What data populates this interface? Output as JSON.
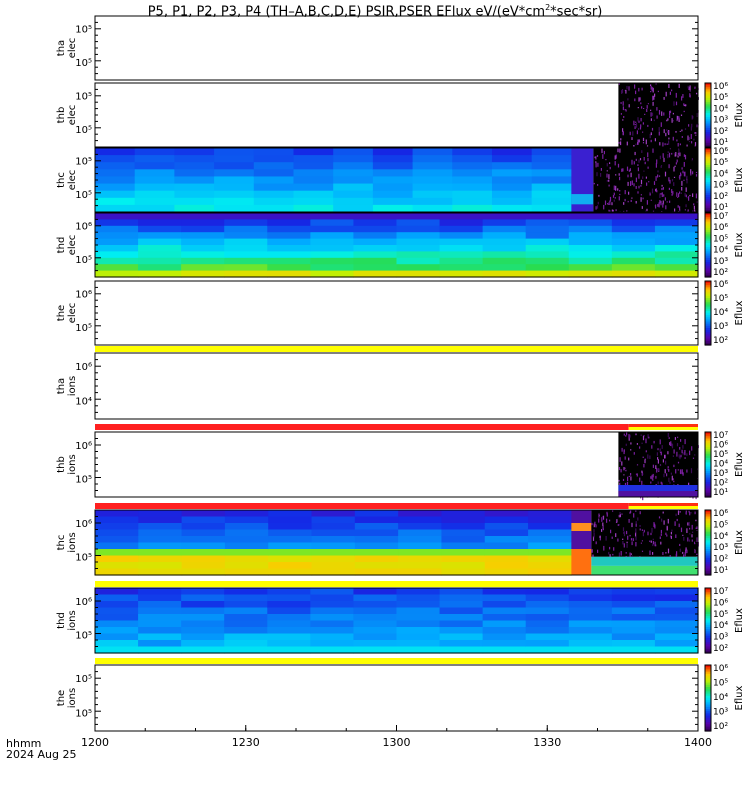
{
  "title": {
    "main": "P5, P1, P2, P3, P4 (TH–A,B,C,D,E) PSIR,PSER EFlux eV/(eV*cm",
    "sup": "2",
    "tail": "*sec*sr)"
  },
  "footer": {
    "var_label": "hhmm",
    "date_label": "2024 Aug 25"
  },
  "colors": {
    "bar_yellow": "#ffff00",
    "bar_red": "#ff2020",
    "bar_redorange": "#ff3010"
  },
  "chart_data": {
    "type": "heatmap",
    "xaxis": {
      "ticks": [
        "1200",
        "1230",
        "1300",
        "1330",
        "1400"
      ],
      "range": [
        1200,
        1400
      ]
    },
    "colorbar_label": "Eflux",
    "panels": [
      {
        "id": "tha-elec",
        "labels": [
          "tha",
          "elec"
        ],
        "ylabels": [
          "10⁵",
          "10⁵"
        ],
        "data": "empty",
        "colorbar": null,
        "bar_below": null
      },
      {
        "id": "thb-elec",
        "labels": [
          "thb",
          "elec"
        ],
        "ylabels": [
          "10⁵",
          "10⁵"
        ],
        "data": "late",
        "late_start": 0.868,
        "colorbar": [
          "10⁶",
          "10⁵",
          "10⁴",
          "10³",
          "10²",
          "10¹"
        ],
        "bar_below": null
      },
      {
        "id": "thc-elec",
        "labels": [
          "thc",
          "elec"
        ],
        "ylabels": [
          "10⁵",
          "10⁵"
        ],
        "data": "full-late",
        "colorbar": [
          "10⁶",
          "10⁵",
          "10⁴",
          "10³",
          "10²",
          "10¹"
        ],
        "bar_below": null
      },
      {
        "id": "thd-elec",
        "labels": [
          "thd",
          "elec"
        ],
        "ylabels": [
          "10⁶",
          "10⁵"
        ],
        "data": "full-green",
        "colorbar": [
          "10⁷",
          "10⁶",
          "10⁵",
          "10⁴",
          "10³",
          "10²"
        ],
        "bar_below": null
      },
      {
        "id": "the-elec",
        "labels": [
          "the",
          "elec"
        ],
        "ylabels": [
          "10⁶",
          "10⁵"
        ],
        "data": "empty",
        "colorbar": [
          "10⁶",
          "10⁵",
          "10⁴",
          "10³",
          "10²"
        ],
        "bar_below": "yellow"
      },
      {
        "id": "tha-ions",
        "labels": [
          "tha",
          "ions"
        ],
        "ylabels": [
          "10⁶",
          "10⁴"
        ],
        "data": "empty",
        "colorbar": null,
        "bar_below": "red-yellow"
      },
      {
        "id": "thb-ions",
        "labels": [
          "thb",
          "ions"
        ],
        "ylabels": [
          "10⁶",
          "10⁵"
        ],
        "data": "late",
        "late_start": 0.868,
        "colorbar": [
          "10⁷",
          "10⁶",
          "10⁵",
          "10⁴",
          "10³",
          "10²",
          "10¹"
        ],
        "bar_below": "red-yellow"
      },
      {
        "id": "thc-ions",
        "labels": [
          "thc",
          "ions"
        ],
        "ylabels": [
          "10⁶",
          "10⁵"
        ],
        "data": "full-orange",
        "colorbar": [
          "10⁶",
          "10⁵",
          "10⁴",
          "10³",
          "10²",
          "10¹"
        ],
        "bar_below": "yellow"
      },
      {
        "id": "thd-ions",
        "labels": [
          "thd",
          "ions"
        ],
        "ylabels": [
          "10⁶",
          "10⁵"
        ],
        "data": "full-blue",
        "colorbar": [
          "10⁷",
          "10⁶",
          "10⁵",
          "10⁴",
          "10³",
          "10²"
        ],
        "bar_below": "yellow"
      },
      {
        "id": "the-ions",
        "labels": [
          "the",
          "ions"
        ],
        "ylabels": [
          "10⁵",
          "10⁵"
        ],
        "data": "empty",
        "colorbar": [
          "10⁶",
          "10⁵",
          "10⁴",
          "10³",
          "10²"
        ],
        "bar_below": null
      }
    ]
  }
}
